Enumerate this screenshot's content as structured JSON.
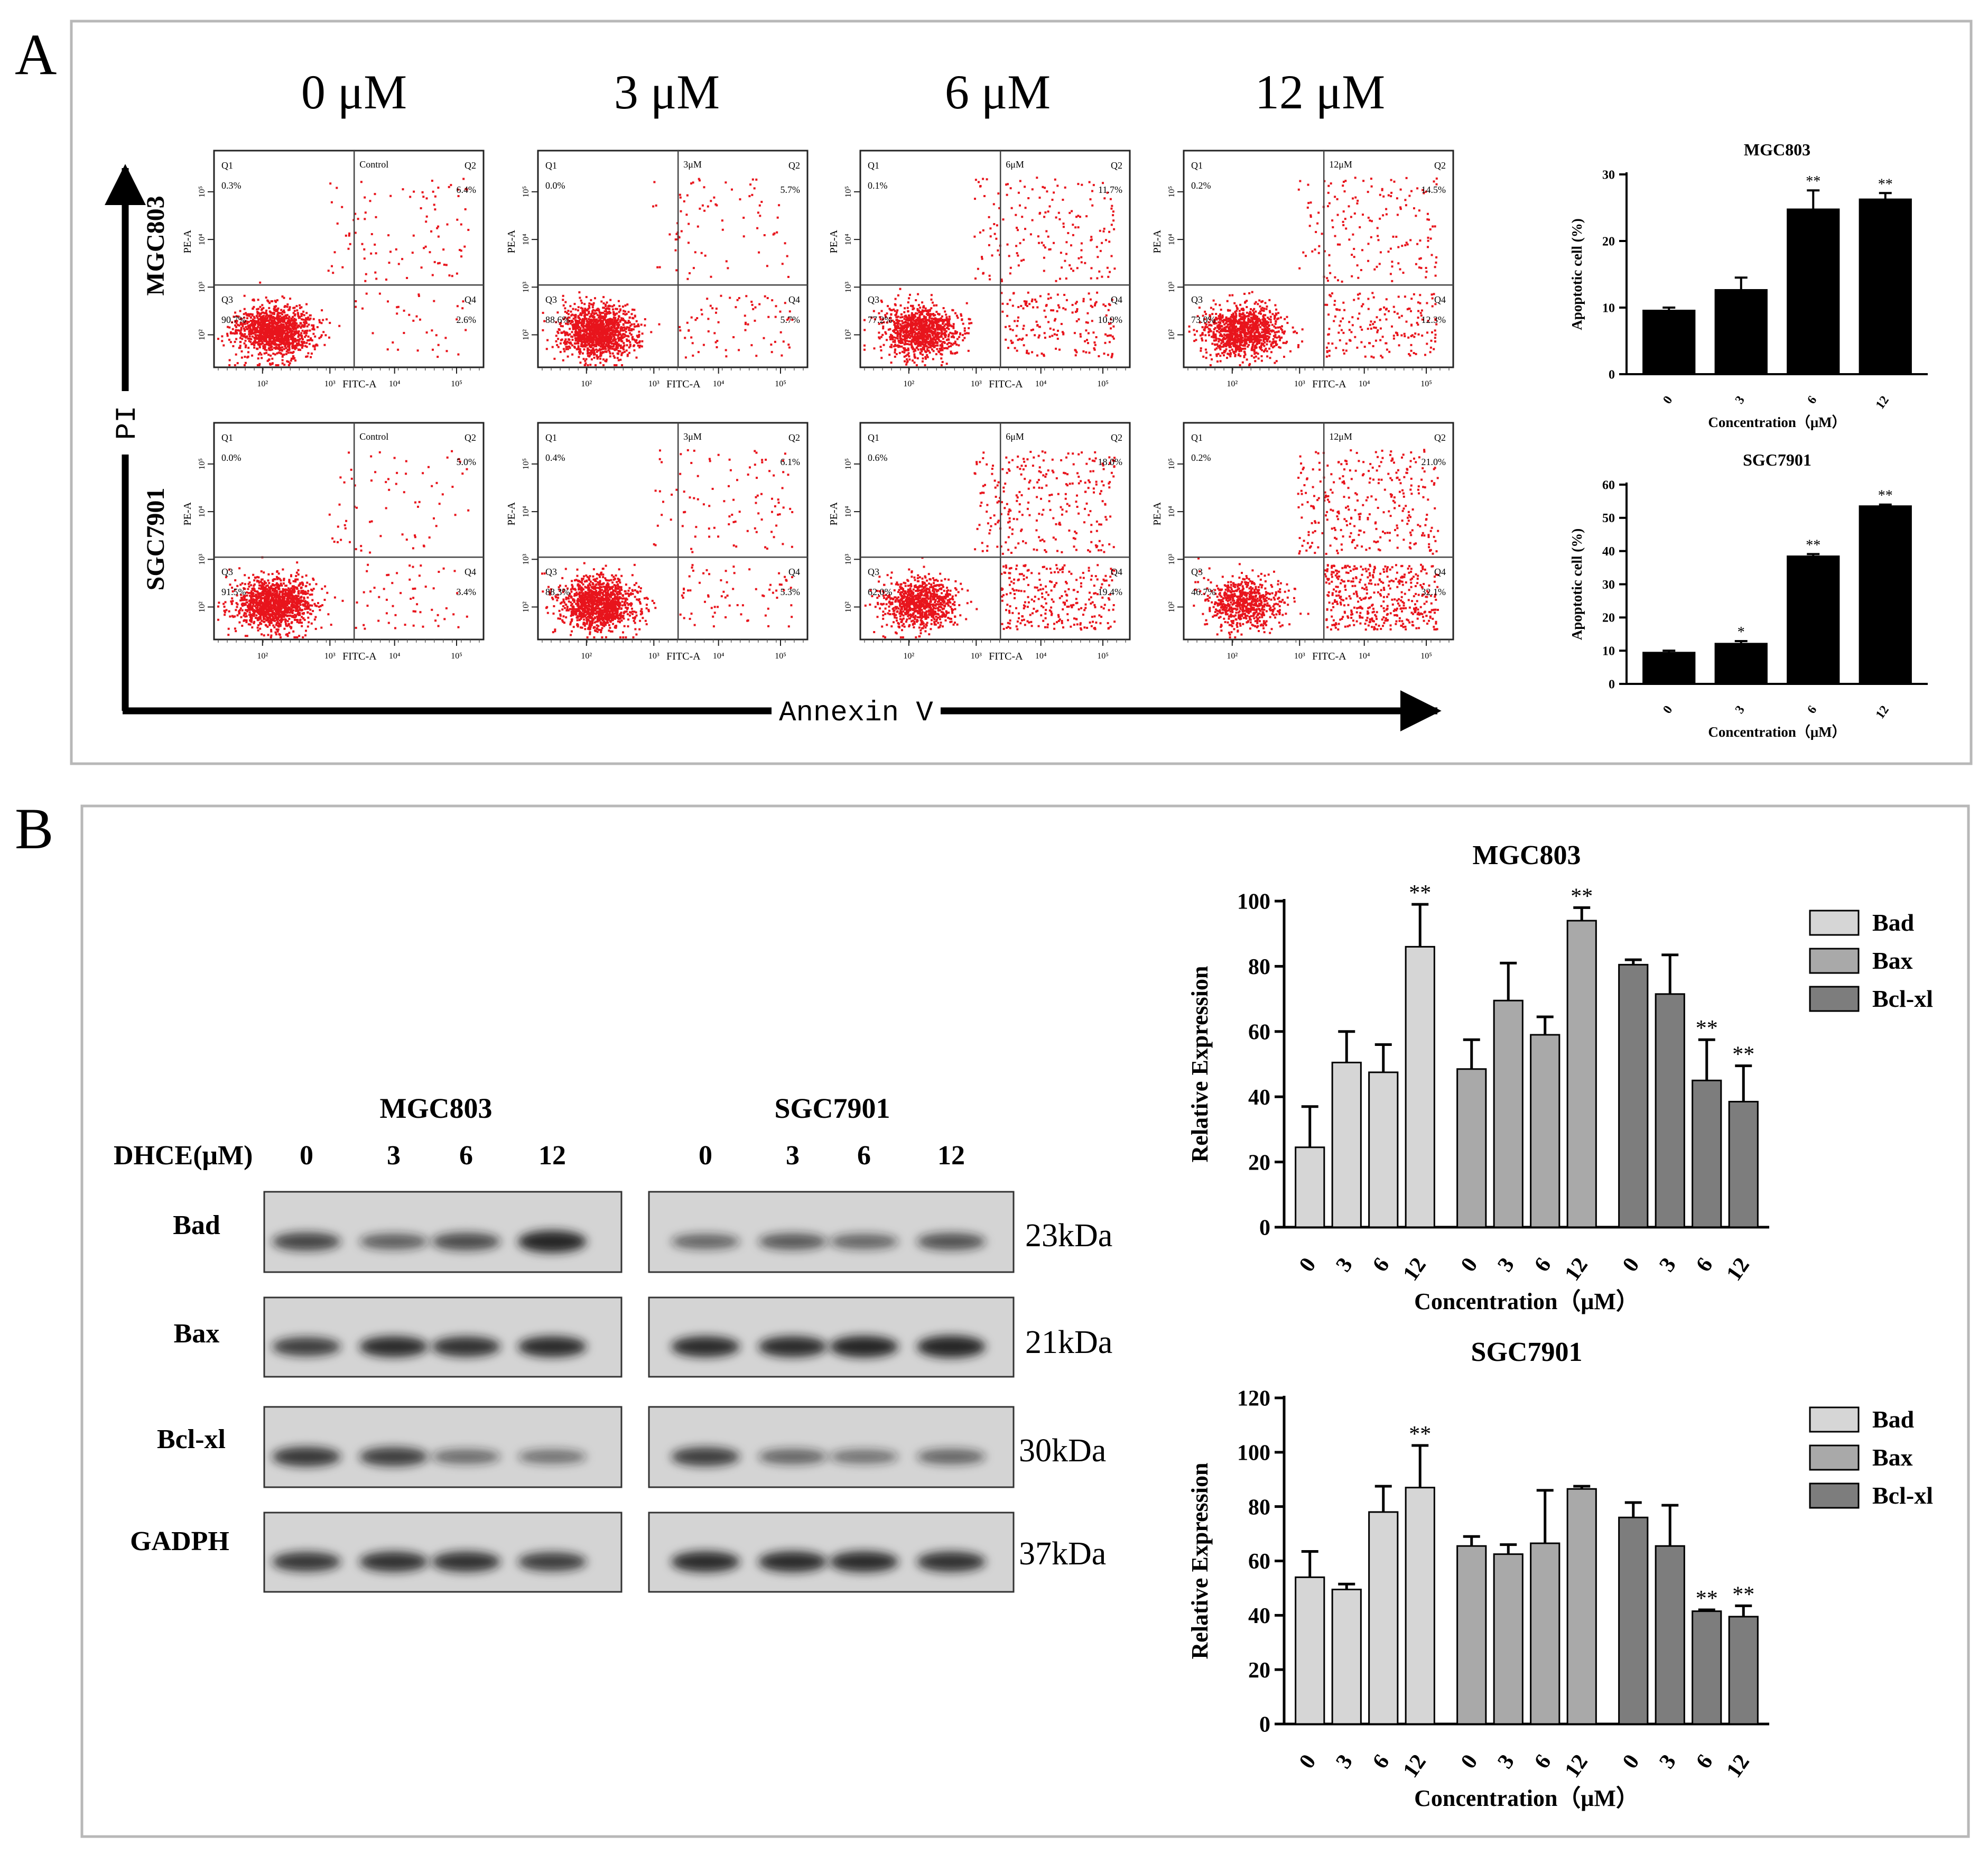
{
  "colors": {
    "frame": "#b8b8b8",
    "dot": "#e8141c",
    "axis": "#000000",
    "bar_black": "#000000",
    "bar_bad": "#d6d6d6",
    "bar_bax": "#a9a9a9",
    "bar_bclxl": "#7d7d7d",
    "blot_bg": "#d4d4d4",
    "band": "#1a1a1a"
  },
  "panelA": {
    "label": "A",
    "concentrations": [
      "0 μM",
      "3 μM",
      "6 μM",
      "12 μM"
    ],
    "row_labels": [
      "MGC803",
      "SGC7901"
    ],
    "y_axis_label": "PI",
    "x_axis_label": "Annexin V",
    "flow_axis": {
      "x": "FITC-A",
      "y": "PE-A",
      "ticks": [
        "10²",
        "10³",
        "10⁴",
        "10⁵"
      ]
    },
    "quadrant_names": [
      "Q1",
      "Q2",
      "Q3",
      "Q4"
    ],
    "flow_plots": [
      [
        {
          "tag": "Control",
          "q1": "0.3%",
          "q2": "6.4%",
          "q3": "90.7%",
          "q4": "2.6%"
        },
        {
          "tag": "3μM",
          "q1": "0.0%",
          "q2": "5.7%",
          "q3": "88.6%",
          "q4": "5.7%"
        },
        {
          "tag": "6μM",
          "q1": "0.1%",
          "q2": "11.7%",
          "q3": "77.2%",
          "q4": "10.9%"
        },
        {
          "tag": "12μM",
          "q1": "0.2%",
          "q2": "14.5%",
          "q3": "73.0%",
          "q4": "12.3%"
        }
      ],
      [
        {
          "tag": "Control",
          "q1": "0.0%",
          "q2": "5.0%",
          "q3": "91.5%",
          "q4": "3.4%"
        },
        {
          "tag": "3μM",
          "q1": "0.4%",
          "q2": "6.1%",
          "q3": "88.3%",
          "q4": "5.3%"
        },
        {
          "tag": "6μM",
          "q1": "0.6%",
          "q2": "18.0%",
          "q3": "62.0%",
          "q4": "19.4%"
        },
        {
          "tag": "12μM",
          "q1": "0.2%",
          "q2": "21.0%",
          "q3": "46.7%",
          "q4": "32.1%"
        }
      ]
    ]
  },
  "panelB": {
    "label": "B",
    "blot": {
      "cell_lines": [
        "MGC803",
        "SGC7901"
      ],
      "dose_label": "DHCE(μM)",
      "doses": [
        "0",
        "3",
        "6",
        "12"
      ],
      "proteins": [
        "Bad",
        "Bax",
        "Bcl-xl",
        "GADPH"
      ],
      "weights": [
        "23kDa",
        "21kDa",
        "30kDa",
        "37kDa"
      ],
      "intensity": [
        [
          [
            0.7,
            0.5,
            0.65,
            1.0
          ],
          [
            0.45,
            0.55,
            0.45,
            0.6
          ]
        ],
        [
          [
            0.75,
            0.9,
            0.85,
            0.9
          ],
          [
            0.9,
            0.9,
            0.95,
            1.0
          ]
        ],
        [
          [
            0.8,
            0.75,
            0.4,
            0.35
          ],
          [
            0.75,
            0.45,
            0.35,
            0.45
          ]
        ],
        [
          [
            0.8,
            0.85,
            0.85,
            0.75
          ],
          [
            0.9,
            0.9,
            0.9,
            0.85
          ]
        ]
      ]
    }
  },
  "chart_data": [
    {
      "type": "bar",
      "title": "MGC803",
      "categories": [
        "0",
        "3",
        "6",
        "12"
      ],
      "values": [
        9.6,
        12.7,
        24.8,
        26.3
      ],
      "errors": [
        0.4,
        1.8,
        2.8,
        0.9
      ],
      "significance": [
        "",
        "",
        "**",
        "**"
      ],
      "xlabel": "Concentration（μM）",
      "ylabel": "Apoptotic cell (%)",
      "ylim": [
        0,
        30
      ],
      "yticks": [
        "0",
        "10",
        "20",
        "30"
      ]
    },
    {
      "type": "bar",
      "title": "SGC7901",
      "categories": [
        "0",
        "3",
        "6",
        "12"
      ],
      "values": [
        9.5,
        12.2,
        38.5,
        53.6
      ],
      "errors": [
        0.5,
        0.7,
        0.6,
        0.4
      ],
      "significance": [
        "",
        "*",
        "**",
        "**"
      ],
      "xlabel": "Concentration（μM）",
      "ylabel": "Apoptotic cell (%)",
      "ylim": [
        0,
        60
      ],
      "yticks": [
        "0",
        "10",
        "20",
        "30",
        "40",
        "50",
        "60"
      ]
    },
    {
      "type": "bar",
      "title": "MGC803",
      "categories": [
        "0",
        "3",
        "6",
        "12"
      ],
      "series": [
        {
          "name": "Bad",
          "values": [
            24.5,
            50.5,
            47.5,
            86
          ],
          "errors": [
            12.5,
            9.5,
            8.5,
            13
          ],
          "significance": [
            "",
            "",
            "",
            "**"
          ]
        },
        {
          "name": "Bax",
          "values": [
            48.5,
            69.5,
            59,
            94
          ],
          "errors": [
            9,
            11.5,
            5.5,
            4
          ],
          "significance": [
            "",
            "",
            "",
            "**"
          ]
        },
        {
          "name": "Bcl-xl",
          "values": [
            80.5,
            71.5,
            45,
            38.5
          ],
          "errors": [
            1.5,
            12,
            12.5,
            11
          ],
          "significance": [
            "",
            "",
            "**",
            "**"
          ]
        }
      ],
      "xlabel": "Concentration（μM）",
      "ylabel": "Relative Expression",
      "ylim": [
        0,
        100
      ],
      "yticks": [
        "0",
        "20",
        "40",
        "60",
        "80",
        "100"
      ],
      "legend": "right"
    },
    {
      "type": "bar",
      "title": "SGC7901",
      "categories": [
        "0",
        "3",
        "6",
        "12"
      ],
      "series": [
        {
          "name": "Bad",
          "values": [
            54,
            49.5,
            78,
            87
          ],
          "errors": [
            9.5,
            2,
            9.5,
            15.5
          ],
          "significance": [
            "",
            "",
            "",
            "**"
          ]
        },
        {
          "name": "Bax",
          "values": [
            65.5,
            62.5,
            66.5,
            86.5
          ],
          "errors": [
            3.5,
            3.5,
            19.5,
            1
          ],
          "significance": [
            "",
            "",
            "",
            ""
          ]
        },
        {
          "name": "Bcl-xl",
          "values": [
            76,
            65.5,
            41.5,
            39.5
          ],
          "errors": [
            5.5,
            15,
            0.5,
            4
          ],
          "significance": [
            "",
            "",
            "**",
            "**"
          ]
        }
      ],
      "xlabel": "Concentration（μM）",
      "ylabel": "Relative Expression",
      "ylim": [
        0,
        120
      ],
      "yticks": [
        "0",
        "20",
        "40",
        "60",
        "80",
        "100",
        "120"
      ],
      "legend": "right"
    }
  ]
}
